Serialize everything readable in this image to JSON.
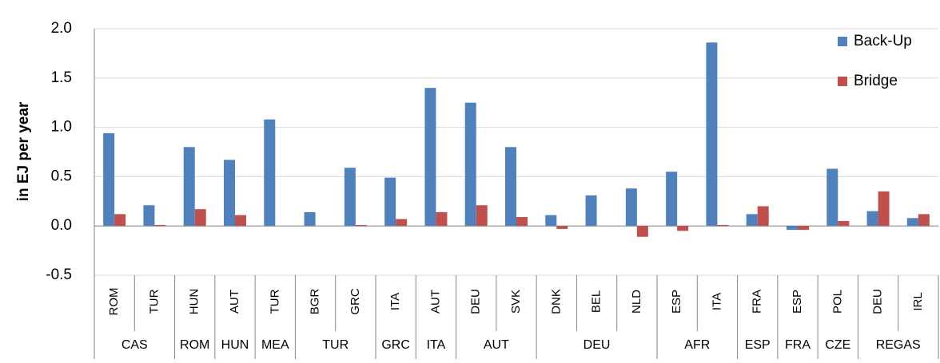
{
  "chart_data": {
    "type": "bar",
    "y_label": "in EJ per year",
    "groups": [
      {
        "name": "CAS",
        "categories": [
          "ROM",
          "TUR"
        ]
      },
      {
        "name": "ROM",
        "categories": [
          "HUN"
        ]
      },
      {
        "name": "HUN",
        "categories": [
          "AUT"
        ]
      },
      {
        "name": "MEA",
        "categories": [
          "TUR"
        ]
      },
      {
        "name": "TUR",
        "categories": [
          "BGR",
          "GRC"
        ]
      },
      {
        "name": "GRC",
        "categories": [
          "ITA"
        ]
      },
      {
        "name": "ITA",
        "categories": [
          "AUT"
        ]
      },
      {
        "name": "AUT",
        "categories": [
          "DEU",
          "SVK"
        ]
      },
      {
        "name": "DEU",
        "categories": [
          "DNK",
          "BEL",
          "NLD"
        ]
      },
      {
        "name": "AFR",
        "categories": [
          "ESP",
          "ITA"
        ]
      },
      {
        "name": "ESP",
        "categories": [
          "FRA"
        ]
      },
      {
        "name": "FRA",
        "categories": [
          "ESP"
        ]
      },
      {
        "name": "CZE",
        "categories": [
          "POL"
        ]
      },
      {
        "name": "REGAS",
        "categories": [
          "DEU",
          "IRL"
        ]
      }
    ],
    "series": [
      {
        "name": "Back-Up",
        "color": "#4f81bd",
        "values": [
          0.94,
          0.21,
          0.8,
          0.67,
          1.08,
          0.14,
          0.59,
          0.49,
          1.4,
          1.25,
          0.8,
          0.11,
          0.31,
          0.38,
          0.55,
          1.86,
          0.12,
          -0.04,
          0.58,
          0.15,
          0.08
        ]
      },
      {
        "name": "Bridge",
        "color": "#c0504d",
        "values": [
          0.12,
          0.01,
          0.17,
          0.11,
          0,
          0,
          0.01,
          0.07,
          0.14,
          0.21,
          0.09,
          -0.03,
          0,
          -0.11,
          -0.05,
          0.01,
          0.2,
          -0.04,
          0.05,
          0.35,
          0.12
        ]
      }
    ],
    "ylim": [
      -0.5,
      2.0
    ],
    "yticks": [
      -0.5,
      {
        "value": 0,
        "label": "0.0"
      },
      0.5,
      {
        "value": 1,
        "label": "1.0"
      },
      1.5,
      {
        "value": 2,
        "label": "2.0"
      }
    ],
    "grid": true,
    "legend": "top-right"
  }
}
